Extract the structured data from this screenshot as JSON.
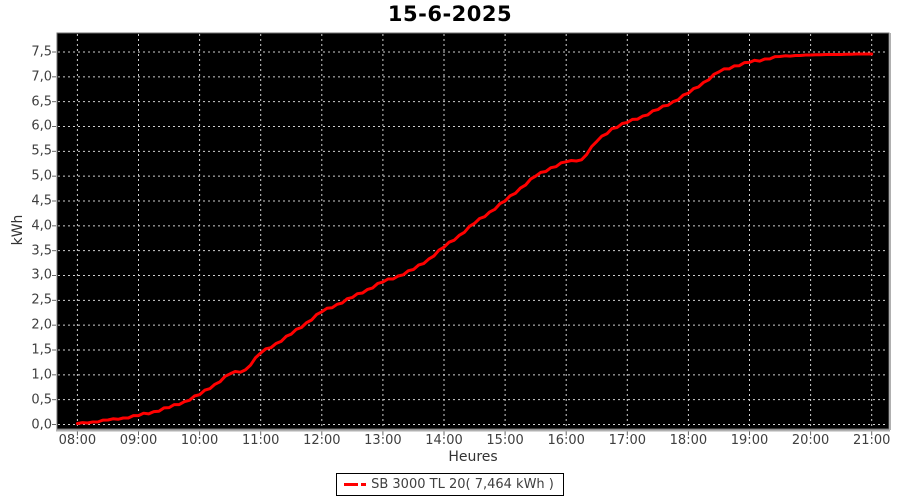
{
  "colors": {
    "page_bg": "#ffffff",
    "plot_bg": "#000000",
    "grid": "#cfcfcf",
    "plot_border": "#6f6f6f",
    "axis_shadow": "#b0b0b0",
    "tick_mark": "#666666",
    "tick_label": "#3f3f3f",
    "axis_label": "#333333",
    "title": "#000000",
    "series_red": "#ff0000",
    "legend_border": "#000000"
  },
  "chart_data": {
    "type": "line",
    "title": "15-6-2025",
    "xlabel": "Heures",
    "ylabel": "kWh",
    "grid": "dashed",
    "background": "#000000",
    "legend_position": "bottom-center",
    "x_ticks": [
      "08:00",
      "09:00",
      "10:00",
      "11:00",
      "12:00",
      "13:00",
      "14:00",
      "15:00",
      "16:00",
      "17:00",
      "18:00",
      "19:00",
      "20:00",
      "21:00"
    ],
    "x_tick_hours": [
      8,
      9,
      10,
      11,
      12,
      13,
      14,
      15,
      16,
      17,
      18,
      19,
      20,
      21
    ],
    "y_ticks": [
      "0,0",
      "0,5",
      "1,0",
      "1,5",
      "2,0",
      "2,5",
      "3,0",
      "3,5",
      "4,0",
      "4,5",
      "5,0",
      "5,5",
      "6,0",
      "6,5",
      "7,0",
      "7,5"
    ],
    "y_tick_values": [
      0,
      0.5,
      1,
      1.5,
      2,
      2.5,
      3,
      3.5,
      4,
      4.5,
      5,
      5.5,
      6,
      6.5,
      7,
      7.5
    ],
    "ylim": [
      0,
      7.96
    ],
    "xlim_hours": [
      7.67,
      21.28
    ],
    "series": [
      {
        "name": "SB 3000 TL 20( 7,464 kWh )",
        "color": "#ff0000",
        "total": "7,464 kWh",
        "times": [
          "08:00",
          "08:15",
          "08:30",
          "08:45",
          "09:00",
          "09:15",
          "09:30",
          "09:45",
          "10:00",
          "10:15",
          "10:30",
          "10:45",
          "11:00",
          "11:15",
          "11:30",
          "11:45",
          "12:00",
          "12:15",
          "12:30",
          "12:45",
          "13:00",
          "13:15",
          "13:30",
          "13:45",
          "14:00",
          "14:15",
          "14:30",
          "14:45",
          "15:00",
          "15:15",
          "15:30",
          "15:45",
          "16:00",
          "16:15",
          "16:30",
          "16:45",
          "17:00",
          "17:15",
          "17:30",
          "17:45",
          "18:00",
          "18:15",
          "18:30",
          "18:45",
          "19:00",
          "19:15",
          "19:30",
          "19:45",
          "20:00",
          "20:15",
          "20:30",
          "20:45",
          "21:00"
        ],
        "kwh": [
          0.02,
          0.05,
          0.09,
          0.13,
          0.18,
          0.26,
          0.34,
          0.46,
          0.6,
          0.81,
          1.02,
          1.1,
          1.44,
          1.63,
          1.82,
          2.05,
          2.27,
          2.42,
          2.56,
          2.72,
          2.87,
          2.99,
          3.12,
          3.33,
          3.57,
          3.81,
          4.05,
          4.28,
          4.5,
          4.76,
          5.0,
          5.17,
          5.29,
          5.33,
          5.7,
          5.96,
          6.08,
          6.21,
          6.34,
          6.5,
          6.67,
          6.89,
          7.1,
          7.22,
          7.29,
          7.36,
          7.41,
          7.43,
          7.44,
          7.45,
          7.45,
          7.46,
          7.46
        ]
      }
    ]
  }
}
